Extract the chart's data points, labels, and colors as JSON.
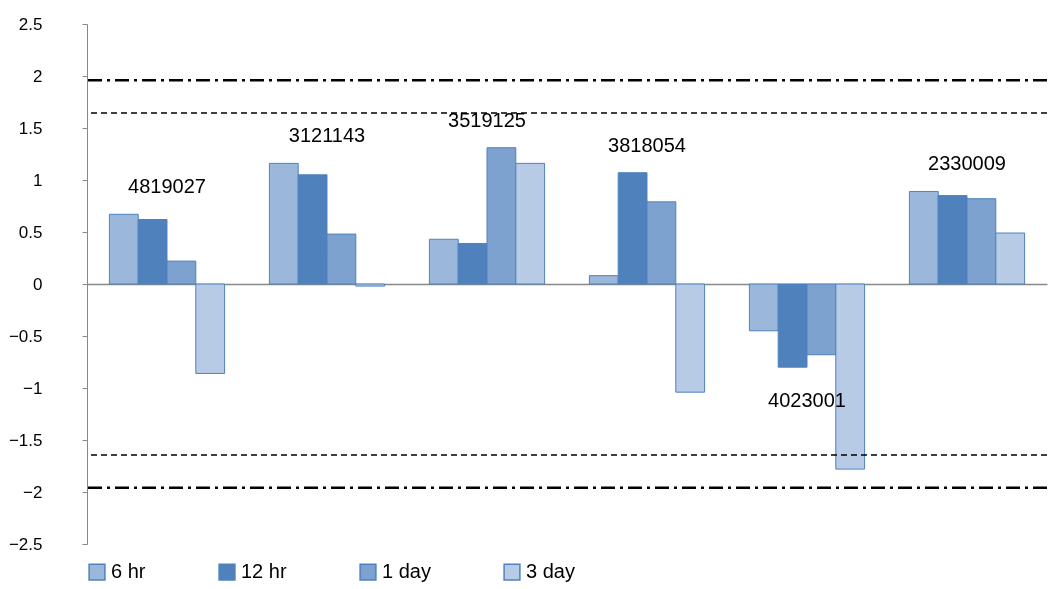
{
  "chart_data": {
    "type": "bar",
    "categories": [
      "4819027",
      "3121143",
      "3519125",
      "3818054",
      "4023001",
      "2330009"
    ],
    "series": [
      {
        "name": "6 hr",
        "color": "#9bb7d9",
        "values": [
          0.67,
          1.16,
          0.43,
          0.08,
          -0.45,
          0.89
        ]
      },
      {
        "name": "12 hr",
        "color": "#4f81bd",
        "values": [
          0.62,
          1.05,
          0.39,
          1.07,
          -0.8,
          0.85
        ]
      },
      {
        "name": "1 day",
        "color": "#7ea2cf",
        "values": [
          0.22,
          0.48,
          1.31,
          0.79,
          -0.68,
          0.82
        ]
      },
      {
        "name": "3 day",
        "color": "#b7cbe6",
        "values": [
          -0.86,
          -0.02,
          1.16,
          -1.04,
          -1.78,
          0.49
        ]
      }
    ],
    "ylim": [
      -2.5,
      2.5
    ],
    "yticks": [
      -2.5,
      -2,
      -1.5,
      -1,
      -0.5,
      0,
      0.5,
      1,
      1.5,
      2,
      2.5
    ],
    "legend": "bottom",
    "ref_lines": [
      {
        "axis": "y",
        "value": 1.96,
        "color": "#000000",
        "line_style": "dashdot"
      },
      {
        "axis": "y",
        "value": 1.645,
        "color": "#000000",
        "line_style": "dashed"
      },
      {
        "axis": "y",
        "value": -1.645,
        "color": "#000000",
        "line_style": "dashed"
      },
      {
        "axis": "y",
        "value": -1.96,
        "color": "#000000",
        "line_style": "dashdot"
      }
    ]
  }
}
